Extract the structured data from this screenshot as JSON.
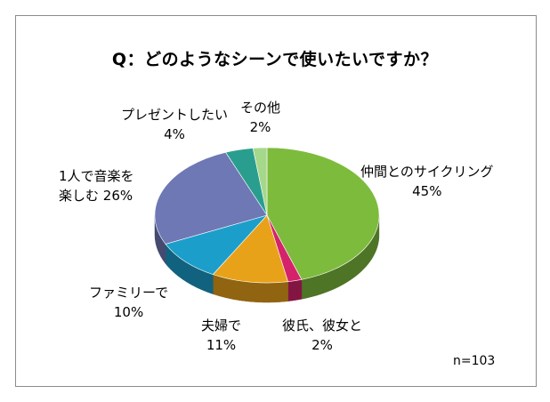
{
  "chart_data": {
    "type": "pie",
    "title": "Q：どのようなシーンで使いたいですか？",
    "note": "n=103",
    "slices": [
      {
        "label": "仲間とのサイクリング",
        "pct_text": "45%",
        "value": 45,
        "color": "#7dbb3c"
      },
      {
        "label": "彼氏、彼女と",
        "pct_text": "2%",
        "value": 2,
        "color": "#d4226b"
      },
      {
        "label": "夫婦で",
        "pct_text": "11%",
        "value": 11,
        "color": "#e8a21a"
      },
      {
        "label": "ファミリーで",
        "pct_text": "10%",
        "value": 10,
        "color": "#1c9ecb"
      },
      {
        "label": "1人で音楽を",
        "label2": "楽しむ",
        "pct_text": "26%",
        "value": 26,
        "color": "#6d78b4"
      },
      {
        "label": "プレゼントしたい",
        "pct_text": "4%",
        "value": 4,
        "color": "#2a9e8e"
      },
      {
        "label": "その他",
        "pct_text": "2%",
        "value": 2,
        "color": "#a6d88c"
      }
    ]
  }
}
